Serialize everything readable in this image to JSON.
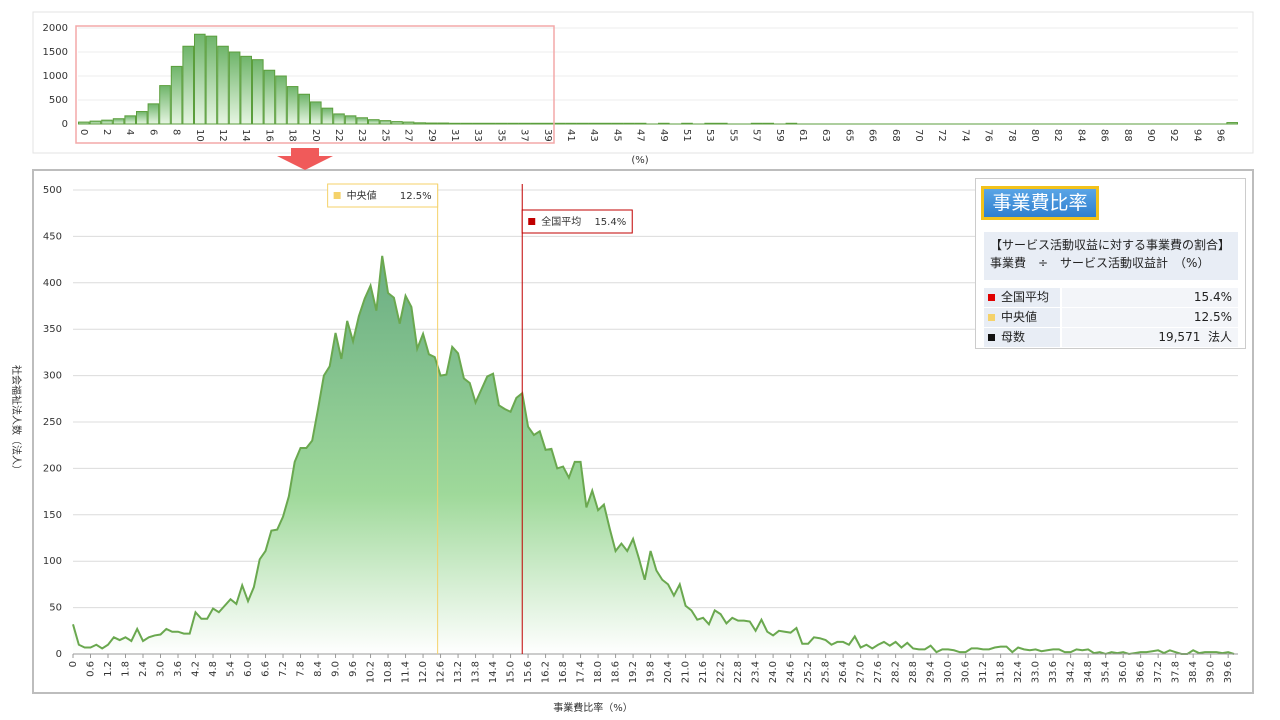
{
  "chart_data": [
    {
      "type": "bar",
      "x_label": "(%)",
      "categories": [
        "0",
        null,
        "2",
        null,
        "4",
        null,
        "6",
        null,
        "8",
        null,
        "10",
        null,
        "12",
        null,
        "14",
        null,
        "16",
        null,
        "18",
        null,
        "20",
        null,
        "22",
        null,
        "23",
        null,
        "25",
        null,
        "27",
        null,
        "29",
        null,
        "31",
        null,
        "33",
        null,
        "35",
        null,
        "37",
        null,
        "39",
        null,
        "41",
        null,
        "43",
        null,
        "45",
        null,
        "47",
        null,
        "49",
        null,
        "51",
        null,
        "53",
        null,
        "55",
        null,
        "57",
        null,
        "59",
        null,
        "61",
        null,
        "63",
        null,
        "65",
        null,
        "66",
        null,
        "68",
        null,
        "70",
        null,
        "72",
        null,
        "74",
        null,
        "76",
        null,
        "78",
        null,
        "80",
        null,
        "82",
        null,
        "84",
        null,
        "86",
        null,
        "88",
        null,
        "90",
        null,
        "92",
        null,
        "94",
        null,
        "96",
        null
      ],
      "values": [
        40,
        60,
        80,
        110,
        170,
        260,
        420,
        800,
        1200,
        1620,
        1870,
        1830,
        1620,
        1500,
        1410,
        1340,
        1120,
        1000,
        780,
        620,
        460,
        330,
        210,
        170,
        130,
        90,
        70,
        50,
        40,
        25,
        20,
        20,
        15,
        15,
        15,
        15,
        15,
        15,
        15,
        15,
        15,
        15,
        15,
        15,
        15,
        15,
        15,
        15,
        15,
        0,
        15,
        0,
        15,
        0,
        15,
        15,
        0,
        0,
        15,
        15,
        0,
        15,
        0,
        0,
        0,
        0,
        0,
        0,
        0,
        0,
        0,
        0,
        0,
        0,
        0,
        0,
        0,
        0,
        0,
        0,
        0,
        0,
        0,
        0,
        0,
        0,
        0,
        0,
        0,
        0,
        0,
        0,
        0,
        0,
        0,
        0,
        0,
        0,
        0,
        30
      ],
      "color": "#5b9e3c",
      "ylim": [
        0,
        2000
      ],
      "yticks": [
        0,
        500,
        1000,
        1500,
        2000
      ],
      "grid": true
    },
    {
      "type": "area",
      "x_label": "事業費比率（%）",
      "y_label": "社会福祉法人数（法人）",
      "color": "#6aa84f",
      "x": [
        0,
        0.2,
        0.4,
        0.6,
        0.8,
        1,
        1.2,
        1.4,
        1.6,
        1.8,
        2,
        2.2,
        2.4,
        2.6,
        2.8,
        3,
        3.2,
        3.4,
        3.6,
        3.8,
        4,
        4.2,
        4.4,
        4.6,
        4.8,
        5,
        5.2,
        5.4,
        5.6,
        5.8,
        6,
        6.2,
        6.4,
        6.6,
        6.8,
        7,
        7.2,
        7.4,
        7.6,
        7.8,
        8,
        8.2,
        8.4,
        8.6,
        8.8,
        9,
        9.2,
        9.4,
        9.6,
        9.8,
        10,
        10.2,
        10.4,
        10.6,
        10.8,
        11,
        11.2,
        11.4,
        11.6,
        11.8,
        12,
        12.2,
        12.4,
        12.6,
        12.8,
        13,
        13.2,
        13.4,
        13.6,
        13.8,
        14,
        14.2,
        14.4,
        14.6,
        14.8,
        15,
        15.2,
        15.4,
        15.6,
        15.8,
        16,
        16.2,
        16.4,
        16.6,
        16.8,
        17,
        17.2,
        17.4,
        17.6,
        17.8,
        18,
        18.2,
        18.4,
        18.6,
        18.8,
        19,
        19.2,
        19.4,
        19.6,
        19.8,
        20,
        20.2,
        20.4,
        20.6,
        20.8,
        21,
        21.2,
        21.4,
        21.6,
        21.8,
        22,
        22.2,
        22.4,
        22.6,
        22.8,
        23,
        23.2,
        23.4,
        23.6,
        23.8,
        24,
        24.2,
        24.4,
        24.6,
        24.8,
        25,
        25.2,
        25.4,
        25.6,
        25.8,
        26,
        26.2,
        26.4,
        26.6,
        26.8,
        27,
        27.2,
        27.4,
        27.6,
        27.8,
        28,
        28.2,
        28.4,
        28.6,
        28.8,
        29,
        29.2,
        29.4,
        29.6,
        29.8,
        30,
        30.2,
        30.4,
        30.6,
        30.8,
        31,
        31.2,
        31.4,
        31.6,
        31.8,
        32,
        32.2,
        32.4,
        32.6,
        32.8,
        33,
        33.2,
        33.4,
        33.6,
        33.8,
        34,
        34.2,
        34.4,
        34.6,
        34.8,
        35,
        35.2,
        35.4,
        35.6,
        35.8,
        36,
        36.2,
        36.4,
        36.6,
        36.8,
        37,
        37.2,
        37.4,
        37.6,
        37.8,
        38,
        38.2,
        38.4,
        38.6,
        38.8,
        39,
        39.2,
        39.4,
        39.6,
        39.8
      ],
      "values": [
        32,
        10,
        7,
        7,
        10,
        6,
        10,
        18,
        15,
        18,
        14,
        27,
        14,
        18,
        20,
        21,
        27,
        24,
        24,
        22,
        22,
        45,
        38,
        38,
        49,
        45,
        52,
        59,
        54,
        74,
        57,
        72,
        102,
        111,
        133,
        134,
        148,
        170,
        207,
        222,
        222,
        230,
        264,
        300,
        310,
        346,
        318,
        359,
        337,
        364,
        383,
        397,
        370,
        429,
        389,
        384,
        356,
        386,
        374,
        329,
        345,
        323,
        320,
        300,
        301,
        331,
        324,
        297,
        292,
        271,
        285,
        299,
        302,
        268,
        264,
        261,
        276,
        281,
        245,
        236,
        240,
        220,
        221,
        200,
        202,
        190,
        207,
        207,
        158,
        176,
        155,
        161,
        135,
        111,
        119,
        111,
        124,
        103,
        80,
        111,
        90,
        80,
        75,
        63,
        75,
        52,
        47,
        37,
        39,
        32,
        47,
        43,
        33,
        39,
        36,
        36,
        35,
        25,
        37,
        24,
        20,
        25,
        24,
        23,
        28,
        11,
        11,
        18,
        17,
        15,
        10,
        13,
        13,
        10,
        19,
        7,
        10,
        6,
        10,
        13,
        9,
        13,
        7,
        12,
        6,
        5,
        5,
        9,
        2,
        5,
        5,
        4,
        2,
        2,
        6,
        6,
        5,
        5,
        7,
        8,
        8,
        2,
        7,
        5,
        4,
        5,
        3,
        4,
        5,
        5,
        2,
        2,
        5,
        4,
        5,
        1,
        2,
        0,
        2,
        1,
        2,
        0,
        1,
        2,
        2,
        3,
        4,
        1,
        4,
        2,
        0,
        0,
        4,
        1,
        2,
        2,
        2,
        1,
        2,
        0
      ],
      "xlim": [
        0,
        39.8
      ],
      "xticks": [
        0,
        0.6,
        1.2,
        1.8,
        2.4,
        {
          "value": 3,
          "label": "3.0"
        },
        3.6,
        4.2,
        4.8,
        5.4,
        {
          "value": 6,
          "label": "6.0"
        },
        6.6,
        7.2,
        7.8,
        8.4,
        {
          "value": 9,
          "label": "9.0"
        },
        9.6,
        10.2,
        10.8,
        11.4,
        {
          "value": 12,
          "label": "12.0"
        },
        12.6,
        13.2,
        13.8,
        14.4,
        {
          "value": 15,
          "label": "15.0"
        },
        15.6,
        16.2,
        16.8,
        17.4,
        {
          "value": 18,
          "label": "18.0"
        },
        18.6,
        19.2,
        19.8,
        20.4,
        {
          "value": 21,
          "label": "21.0"
        },
        21.6,
        22.2,
        22.8,
        23.4,
        {
          "value": 24,
          "label": "24.0"
        },
        24.6,
        25.2,
        25.8,
        26.4,
        {
          "value": 27,
          "label": "27.0"
        },
        27.6,
        28.2,
        28.8,
        29.4,
        {
          "value": 30,
          "label": "30.0"
        },
        30.6,
        31.2,
        31.8,
        32.4,
        {
          "value": 33,
          "label": "33.0"
        },
        33.6,
        34.2,
        34.8,
        35.4,
        {
          "value": 36,
          "label": "36.0"
        },
        36.6,
        37.2,
        37.8,
        38.4,
        {
          "value": 39,
          "label": "39.0"
        },
        39.6
      ],
      "ylim": [
        0,
        500
      ],
      "yticks": [
        0,
        50,
        100,
        150,
        200,
        250,
        300,
        350,
        400,
        450,
        500
      ],
      "grid": true,
      "reference_lines": [
        {
          "label": "中央値",
          "value": 12.5,
          "value_label": "12.5%",
          "color": "#f5d26a"
        },
        {
          "label": "全国平均",
          "value": 15.4,
          "value_label": "15.4%",
          "color": "#c00000"
        }
      ]
    }
  ],
  "info_panel": {
    "title": "事業費比率",
    "formula_title": "【サービス活動収益に対する事業費の割合】",
    "formula": "事業費　÷　サービス活動収益計　（%）",
    "rows": [
      {
        "label": "全国平均",
        "value": "15.4%",
        "color": "#e00000"
      },
      {
        "label": "中央値",
        "value": "12.5%",
        "color": "#f5d26a"
      },
      {
        "label": "母数",
        "value": "19,571",
        "unit": "法人",
        "color": "#111111"
      }
    ]
  }
}
